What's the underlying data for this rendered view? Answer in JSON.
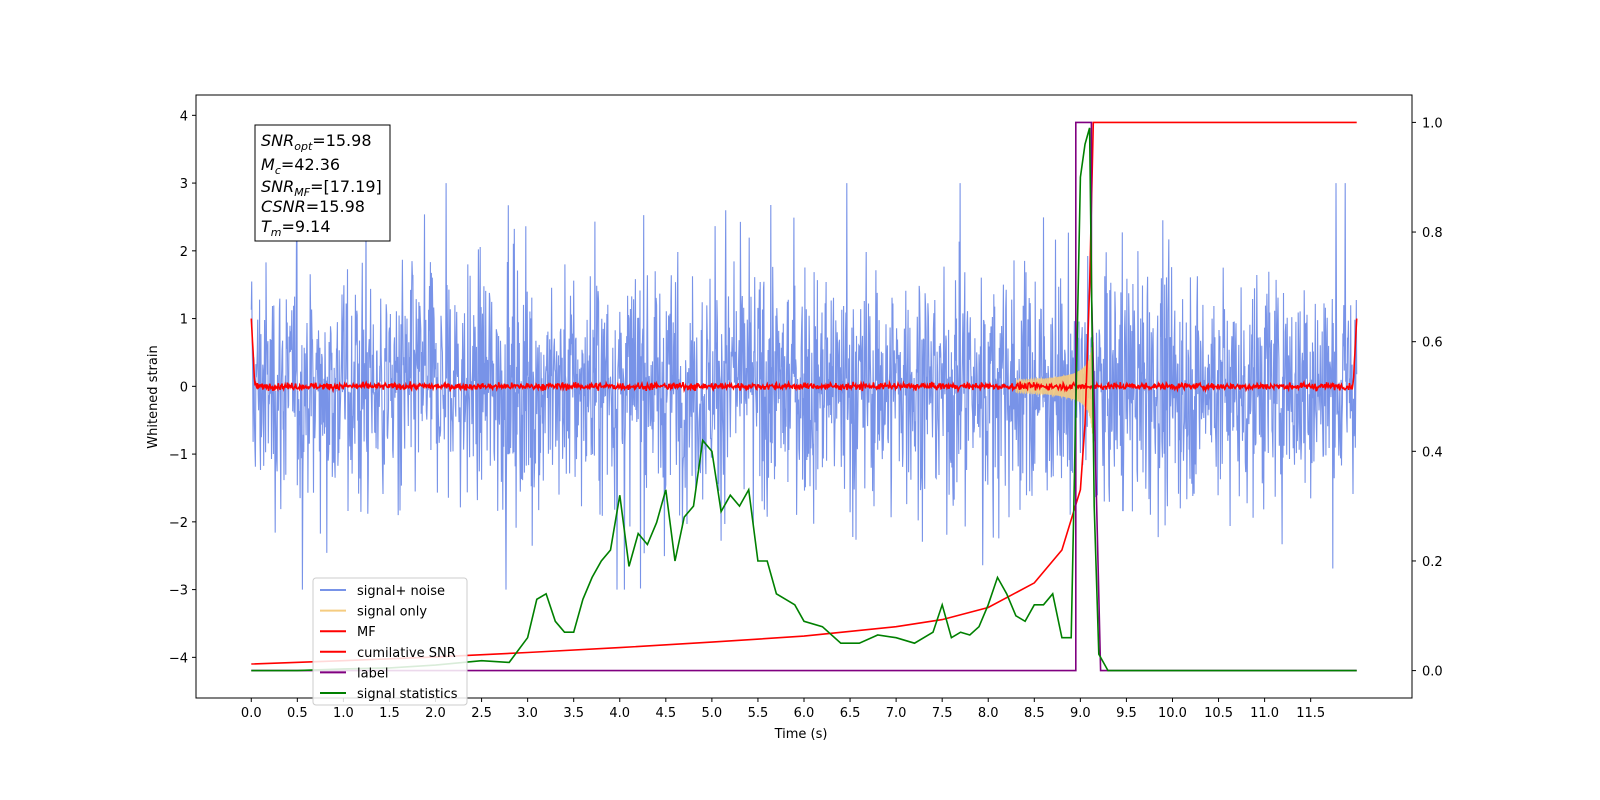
{
  "chart_data": {
    "type": "line",
    "xlabel": "Time (s)",
    "ylabel": "Whitened strain",
    "xlim": [
      -0.6,
      12.6
    ],
    "ylim": [
      -4.6,
      4.3
    ],
    "y2lim": [
      -0.05,
      1.05
    ],
    "x_ticks": [
      "0.0",
      "0.5",
      "1.0",
      "1.5",
      "2.0",
      "2.5",
      "3.0",
      "3.5",
      "4.0",
      "4.5",
      "5.0",
      "5.5",
      "6.0",
      "6.5",
      "7.0",
      "7.5",
      "8.0",
      "8.5",
      "9.0",
      "9.5",
      "10.0",
      "10.5",
      "11.0",
      "11.5"
    ],
    "y_ticks": [
      "4",
      "3",
      "2",
      "1",
      "0",
      "−1",
      "−2",
      "−3",
      "−4"
    ],
    "y2_ticks": [
      "1.0",
      "0.8",
      "0.6",
      "0.4",
      "0.2",
      "0.0"
    ],
    "info_box": {
      "line1_base": "SNR",
      "line1_sub": "opt",
      "line1_value": "=15.98",
      "line2_base": "M",
      "line2_sub": "c",
      "line2_value": "=42.36",
      "line3_base": "SNR",
      "line3_sub": "MF",
      "line3_value": "=[17.19]",
      "line4_base": "CSNR",
      "line4_value": "=15.98",
      "line5_base": "T",
      "line5_sub": "m",
      "line5_value": "=9.14"
    },
    "legend": [
      {
        "label": "signal+ noise",
        "color": "#7893e8"
      },
      {
        "label": "signal only",
        "color": "#f5cc80"
      },
      {
        "label": "MF",
        "color": "#ff0000"
      },
      {
        "label": "cumilative SNR",
        "color": "#ff0000"
      },
      {
        "label": "label",
        "color": "#800080"
      },
      {
        "label": "signal statistics",
        "color": "#008000"
      }
    ],
    "series": [
      {
        "name": "signal+ noise",
        "axis": "left",
        "kind": "noise",
        "x_range": [
          0.0,
          12.0
        ],
        "approx_amplitude": 1.5
      },
      {
        "name": "signal only",
        "axis": "left",
        "kind": "chirp",
        "x_range": [
          8.3,
          9.14
        ],
        "peak_amplitude": 1.0
      },
      {
        "name": "MF",
        "axis": "left",
        "kind": "flat-noise",
        "x_range": [
          0.0,
          12.0
        ],
        "start_value": 1.0,
        "end_value": 1.0,
        "approx_amplitude": 0.07
      },
      {
        "name": "cumilative SNR",
        "axis": "right",
        "x": [
          0.0,
          1.0,
          2.0,
          3.0,
          4.0,
          5.0,
          6.0,
          7.0,
          7.5,
          8.0,
          8.5,
          8.8,
          9.0,
          9.05,
          9.1,
          9.14,
          12.0
        ],
        "y": [
          0.012,
          0.018,
          0.025,
          0.033,
          0.042,
          0.052,
          0.063,
          0.08,
          0.093,
          0.115,
          0.16,
          0.22,
          0.33,
          0.45,
          0.7,
          1.0,
          1.0
        ]
      },
      {
        "name": "label",
        "axis": "right",
        "x": [
          0.0,
          8.95,
          8.95,
          9.12,
          9.12,
          9.22,
          9.22,
          12.0
        ],
        "y": [
          0.0,
          0.0,
          1.0,
          1.0,
          0.7,
          0.0,
          0.0,
          0.0
        ]
      },
      {
        "name": "signal statistics",
        "axis": "right",
        "x": [
          0.0,
          0.5,
          1.0,
          1.5,
          2.0,
          2.5,
          2.8,
          3.0,
          3.1,
          3.2,
          3.3,
          3.4,
          3.5,
          3.6,
          3.7,
          3.8,
          3.9,
          4.0,
          4.1,
          4.2,
          4.3,
          4.4,
          4.5,
          4.6,
          4.7,
          4.8,
          4.9,
          5.0,
          5.1,
          5.2,
          5.3,
          5.4,
          5.5,
          5.6,
          5.7,
          5.8,
          5.9,
          6.0,
          6.2,
          6.4,
          6.6,
          6.8,
          7.0,
          7.2,
          7.4,
          7.5,
          7.6,
          7.7,
          7.8,
          7.9,
          8.0,
          8.1,
          8.2,
          8.3,
          8.4,
          8.5,
          8.6,
          8.7,
          8.8,
          8.9,
          9.0,
          9.05,
          9.1,
          9.15,
          9.2,
          9.3,
          12.0
        ],
        "y": [
          0.0,
          0.0,
          0.003,
          0.005,
          0.01,
          0.018,
          0.015,
          0.06,
          0.13,
          0.14,
          0.09,
          0.07,
          0.07,
          0.13,
          0.17,
          0.2,
          0.22,
          0.32,
          0.19,
          0.25,
          0.23,
          0.27,
          0.33,
          0.2,
          0.28,
          0.3,
          0.42,
          0.4,
          0.29,
          0.32,
          0.3,
          0.33,
          0.2,
          0.2,
          0.14,
          0.13,
          0.12,
          0.09,
          0.08,
          0.05,
          0.05,
          0.065,
          0.06,
          0.05,
          0.07,
          0.12,
          0.06,
          0.07,
          0.065,
          0.08,
          0.12,
          0.17,
          0.14,
          0.1,
          0.09,
          0.12,
          0.12,
          0.14,
          0.06,
          0.06,
          0.9,
          0.96,
          0.99,
          0.3,
          0.03,
          0.0,
          0.0
        ]
      }
    ]
  }
}
